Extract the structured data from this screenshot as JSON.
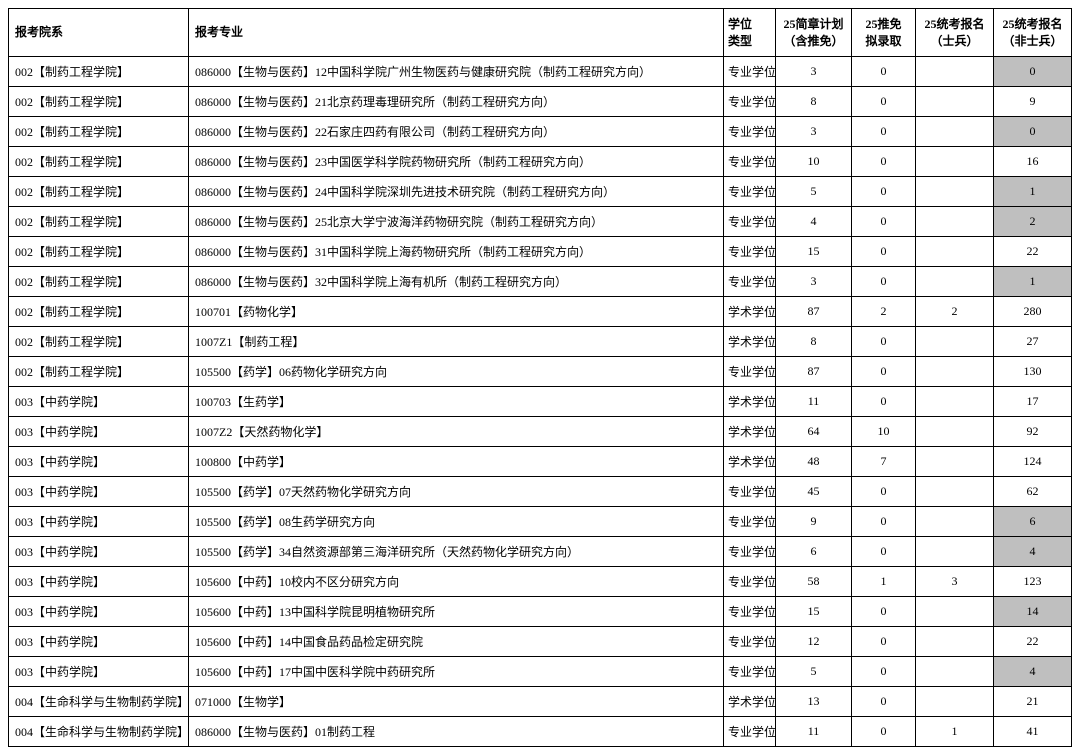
{
  "columns": [
    {
      "key": "dept",
      "label": "报考院系",
      "class": "col-dept"
    },
    {
      "key": "major",
      "label": "报考专业",
      "class": "col-major"
    },
    {
      "key": "degree",
      "label": "学位\n类型",
      "class": "col-degree"
    },
    {
      "key": "plan",
      "label": "25简章计划\n（含推免）",
      "class": "col-plan"
    },
    {
      "key": "tuimian",
      "label": "25推免\n拟录取",
      "class": "col-tuimian"
    },
    {
      "key": "soldier",
      "label": "25统考报名\n（士兵）",
      "class": "col-soldier"
    },
    {
      "key": "nonsoldier",
      "label": "25统考报名\n（非士兵）",
      "class": "col-nonsoldier"
    }
  ],
  "rows": [
    {
      "dept": "002【制药工程学院】",
      "major": "086000【生物与医药】12中国科学院广州生物医药与健康研究院（制药工程研究方向）",
      "degree": "专业学位",
      "plan": "3",
      "tuimian": "0",
      "soldier": "",
      "nonsoldier": "0",
      "highlight": true
    },
    {
      "dept": "002【制药工程学院】",
      "major": "086000【生物与医药】21北京药理毒理研究所（制药工程研究方向）",
      "degree": "专业学位",
      "plan": "8",
      "tuimian": "0",
      "soldier": "",
      "nonsoldier": "9",
      "highlight": false
    },
    {
      "dept": "002【制药工程学院】",
      "major": "086000【生物与医药】22石家庄四药有限公司（制药工程研究方向）",
      "degree": "专业学位",
      "plan": "3",
      "tuimian": "0",
      "soldier": "",
      "nonsoldier": "0",
      "highlight": true
    },
    {
      "dept": "002【制药工程学院】",
      "major": "086000【生物与医药】23中国医学科学院药物研究所（制药工程研究方向）",
      "degree": "专业学位",
      "plan": "10",
      "tuimian": "0",
      "soldier": "",
      "nonsoldier": "16",
      "highlight": false
    },
    {
      "dept": "002【制药工程学院】",
      "major": "086000【生物与医药】24中国科学院深圳先进技术研究院（制药工程研究方向）",
      "degree": "专业学位",
      "plan": "5",
      "tuimian": "0",
      "soldier": "",
      "nonsoldier": "1",
      "highlight": true
    },
    {
      "dept": "002【制药工程学院】",
      "major": "086000【生物与医药】25北京大学宁波海洋药物研究院（制药工程研究方向）",
      "degree": "专业学位",
      "plan": "4",
      "tuimian": "0",
      "soldier": "",
      "nonsoldier": "2",
      "highlight": true
    },
    {
      "dept": "002【制药工程学院】",
      "major": "086000【生物与医药】31中国科学院上海药物研究所（制药工程研究方向）",
      "degree": "专业学位",
      "plan": "15",
      "tuimian": "0",
      "soldier": "",
      "nonsoldier": "22",
      "highlight": false
    },
    {
      "dept": "002【制药工程学院】",
      "major": "086000【生物与医药】32中国科学院上海有机所（制药工程研究方向）",
      "degree": "专业学位",
      "plan": "3",
      "tuimian": "0",
      "soldier": "",
      "nonsoldier": "1",
      "highlight": true
    },
    {
      "dept": "002【制药工程学院】",
      "major": "100701【药物化学】",
      "degree": "学术学位",
      "plan": "87",
      "tuimian": "2",
      "soldier": "2",
      "nonsoldier": "280",
      "highlight": false
    },
    {
      "dept": "002【制药工程学院】",
      "major": "1007Z1【制药工程】",
      "degree": "学术学位",
      "plan": "8",
      "tuimian": "0",
      "soldier": "",
      "nonsoldier": "27",
      "highlight": false
    },
    {
      "dept": "002【制药工程学院】",
      "major": "105500【药学】06药物化学研究方向",
      "degree": "专业学位",
      "plan": "87",
      "tuimian": "0",
      "soldier": "",
      "nonsoldier": "130",
      "highlight": false
    },
    {
      "dept": "003【中药学院】",
      "major": "100703【生药学】",
      "degree": "学术学位",
      "plan": "11",
      "tuimian": "0",
      "soldier": "",
      "nonsoldier": "17",
      "highlight": false
    },
    {
      "dept": "003【中药学院】",
      "major": "1007Z2【天然药物化学】",
      "degree": "学术学位",
      "plan": "64",
      "tuimian": "10",
      "soldier": "",
      "nonsoldier": "92",
      "highlight": false
    },
    {
      "dept": "003【中药学院】",
      "major": "100800【中药学】",
      "degree": "学术学位",
      "plan": "48",
      "tuimian": "7",
      "soldier": "",
      "nonsoldier": "124",
      "highlight": false
    },
    {
      "dept": "003【中药学院】",
      "major": "105500【药学】07天然药物化学研究方向",
      "degree": "专业学位",
      "plan": "45",
      "tuimian": "0",
      "soldier": "",
      "nonsoldier": "62",
      "highlight": false
    },
    {
      "dept": "003【中药学院】",
      "major": "105500【药学】08生药学研究方向",
      "degree": "专业学位",
      "plan": "9",
      "tuimian": "0",
      "soldier": "",
      "nonsoldier": "6",
      "highlight": true
    },
    {
      "dept": "003【中药学院】",
      "major": "105500【药学】34自然资源部第三海洋研究所（天然药物化学研究方向）",
      "degree": "专业学位",
      "plan": "6",
      "tuimian": "0",
      "soldier": "",
      "nonsoldier": "4",
      "highlight": true
    },
    {
      "dept": "003【中药学院】",
      "major": "105600【中药】10校内不区分研究方向",
      "degree": "专业学位",
      "plan": "58",
      "tuimian": "1",
      "soldier": "3",
      "nonsoldier": "123",
      "highlight": false
    },
    {
      "dept": "003【中药学院】",
      "major": "105600【中药】13中国科学院昆明植物研究所",
      "degree": "专业学位",
      "plan": "15",
      "tuimian": "0",
      "soldier": "",
      "nonsoldier": "14",
      "highlight": true
    },
    {
      "dept": "003【中药学院】",
      "major": "105600【中药】14中国食品药品检定研究院",
      "degree": "专业学位",
      "plan": "12",
      "tuimian": "0",
      "soldier": "",
      "nonsoldier": "22",
      "highlight": false
    },
    {
      "dept": "003【中药学院】",
      "major": "105600【中药】17中国中医科学院中药研究所",
      "degree": "专业学位",
      "plan": "5",
      "tuimian": "0",
      "soldier": "",
      "nonsoldier": "4",
      "highlight": true
    },
    {
      "dept": "004【生命科学与生物制药学院】",
      "major": "071000【生物学】",
      "degree": "学术学位",
      "plan": "13",
      "tuimian": "0",
      "soldier": "",
      "nonsoldier": "21",
      "highlight": false
    },
    {
      "dept": "004【生命科学与生物制药学院】",
      "major": "086000【生物与医药】01制药工程",
      "degree": "专业学位",
      "plan": "11",
      "tuimian": "0",
      "soldier": "1",
      "nonsoldier": "41",
      "highlight": false
    }
  ]
}
